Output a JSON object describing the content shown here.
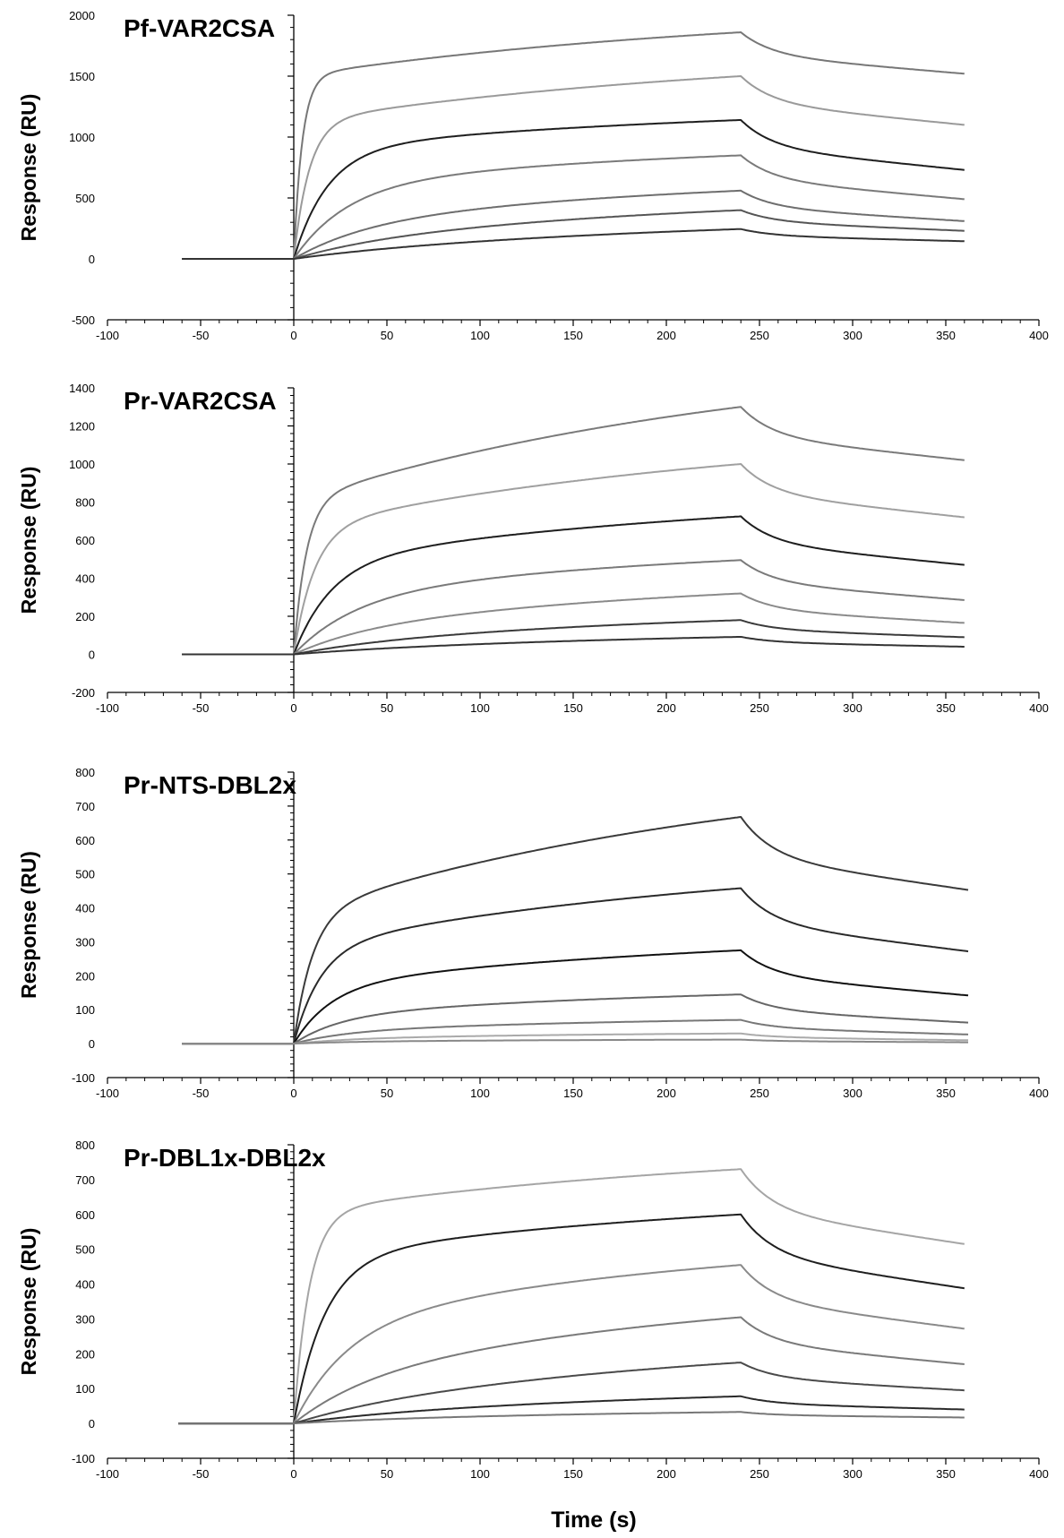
{
  "figure": {
    "xlabel": "Time (s)"
  },
  "chart_data": [
    {
      "type": "line",
      "title": "Pf-VAR2CSA",
      "xlabel": "Time (s)",
      "ylabel": "Response (RU)",
      "xlim": [
        -100,
        400
      ],
      "ylim": [
        -500,
        2000
      ],
      "xticks": [
        -100,
        -50,
        0,
        50,
        100,
        150,
        200,
        250,
        300,
        350,
        400
      ],
      "yticks": [
        -500,
        0,
        500,
        1000,
        1500,
        2000
      ],
      "x_start": -60,
      "x_assoc_end": 240,
      "x_end": 360,
      "series": [
        {
          "color": "#777777",
          "fast": 0.72,
          "k_fast": 0.22,
          "peak": 1860,
          "end": 1520
        },
        {
          "color": "#9a9a9a",
          "fast": 0.65,
          "k_fast": 0.12,
          "peak": 1500,
          "end": 1100
        },
        {
          "color": "#1e1e1e",
          "fast": 0.7,
          "k_fast": 0.055,
          "peak": 1140,
          "end": 730
        },
        {
          "color": "#7a7a7a",
          "fast": 0.6,
          "k_fast": 0.035,
          "peak": 850,
          "end": 490
        },
        {
          "color": "#6e6e6e",
          "fast": 0.4,
          "k_fast": 0.025,
          "peak": 560,
          "end": 310
        },
        {
          "color": "#555555",
          "fast": 0.25,
          "k_fast": 0.02,
          "peak": 400,
          "end": 230
        },
        {
          "color": "#333333",
          "fast": 0.1,
          "k_fast": 0.02,
          "peak": 245,
          "end": 145
        }
      ]
    },
    {
      "type": "line",
      "title": "Pr-VAR2CSA",
      "xlabel": "Time (s)",
      "ylabel": "Response (RU)",
      "xlim": [
        -100,
        400
      ],
      "ylim": [
        -200,
        1400
      ],
      "xticks": [
        -100,
        -50,
        0,
        50,
        100,
        150,
        200,
        250,
        300,
        350,
        400
      ],
      "yticks": [
        -200,
        0,
        200,
        400,
        600,
        800,
        1000,
        1200,
        1400
      ],
      "x_start": -60,
      "x_assoc_end": 240,
      "x_end": 360,
      "series": [
        {
          "color": "#7a7a7a",
          "fast": 0.5,
          "k_fast": 0.15,
          "peak": 1300,
          "end": 1020
        },
        {
          "color": "#a0a0a0",
          "fast": 0.55,
          "k_fast": 0.09,
          "peak": 1000,
          "end": 720
        },
        {
          "color": "#1e1e1e",
          "fast": 0.55,
          "k_fast": 0.05,
          "peak": 725,
          "end": 470
        },
        {
          "color": "#7a7a7a",
          "fast": 0.5,
          "k_fast": 0.03,
          "peak": 495,
          "end": 285
        },
        {
          "color": "#8a8a8a",
          "fast": 0.3,
          "k_fast": 0.025,
          "peak": 320,
          "end": 165
        },
        {
          "color": "#3a3a3a",
          "fast": 0.2,
          "k_fast": 0.02,
          "peak": 180,
          "end": 90
        },
        {
          "color": "#333333",
          "fast": 0.1,
          "k_fast": 0.02,
          "peak": 92,
          "end": 40
        }
      ]
    },
    {
      "type": "line",
      "title": "Pr-NTS-DBL2x",
      "xlabel": "Time (s)",
      "ylabel": "Response (RU)",
      "xlim": [
        -100,
        400
      ],
      "ylim": [
        -100,
        800
      ],
      "xticks": [
        -100,
        -50,
        0,
        50,
        100,
        150,
        200,
        250,
        300,
        350,
        400
      ],
      "yticks": [
        -100,
        0,
        100,
        200,
        300,
        400,
        500,
        600,
        700,
        800
      ],
      "x_start": -60,
      "x_assoc_end": 240,
      "x_end": 362,
      "series": [
        {
          "color": "#3a3a3a",
          "fast": 0.45,
          "k_fast": 0.1,
          "peak": 668,
          "end": 453
        },
        {
          "color": "#2a2a2a",
          "fast": 0.5,
          "k_fast": 0.07,
          "peak": 458,
          "end": 272
        },
        {
          "color": "#111111",
          "fast": 0.5,
          "k_fast": 0.05,
          "peak": 275,
          "end": 142
        },
        {
          "color": "#666666",
          "fast": 0.45,
          "k_fast": 0.04,
          "peak": 145,
          "end": 62
        },
        {
          "color": "#777777",
          "fast": 0.4,
          "k_fast": 0.035,
          "peak": 70,
          "end": 27
        },
        {
          "color": "#aaaaaa",
          "fast": 0.4,
          "k_fast": 0.03,
          "peak": 30,
          "end": 10
        },
        {
          "color": "#888888",
          "fast": 0.4,
          "k_fast": 0.03,
          "peak": 12,
          "end": 4
        }
      ]
    },
    {
      "type": "line",
      "title": "Pr-DBL1x-DBL2x",
      "xlabel": "Time (s)",
      "ylabel": "Response (RU)",
      "xlim": [
        -100,
        400
      ],
      "ylim": [
        -100,
        800
      ],
      "xticks": [
        -100,
        -50,
        0,
        50,
        100,
        150,
        200,
        250,
        300,
        350,
        400
      ],
      "yticks": [
        -100,
        0,
        100,
        200,
        300,
        400,
        500,
        600,
        700,
        800
      ],
      "x_start": -62,
      "x_assoc_end": 240,
      "x_end": 360,
      "series": [
        {
          "color": "#a5a5a5",
          "fast": 0.75,
          "k_fast": 0.12,
          "peak": 730,
          "end": 515
        },
        {
          "color": "#1e1e1e",
          "fast": 0.7,
          "k_fast": 0.06,
          "peak": 600,
          "end": 388
        },
        {
          "color": "#8a8a8a",
          "fast": 0.5,
          "k_fast": 0.035,
          "peak": 455,
          "end": 272
        },
        {
          "color": "#7a7a7a",
          "fast": 0.3,
          "k_fast": 0.025,
          "peak": 305,
          "end": 170
        },
        {
          "color": "#4a4a4a",
          "fast": 0.15,
          "k_fast": 0.02,
          "peak": 175,
          "end": 95
        },
        {
          "color": "#2a2a2a",
          "fast": 0.15,
          "k_fast": 0.02,
          "peak": 78,
          "end": 40
        },
        {
          "color": "#777777",
          "fast": 0.15,
          "k_fast": 0.02,
          "peak": 33,
          "end": 17
        }
      ]
    }
  ]
}
